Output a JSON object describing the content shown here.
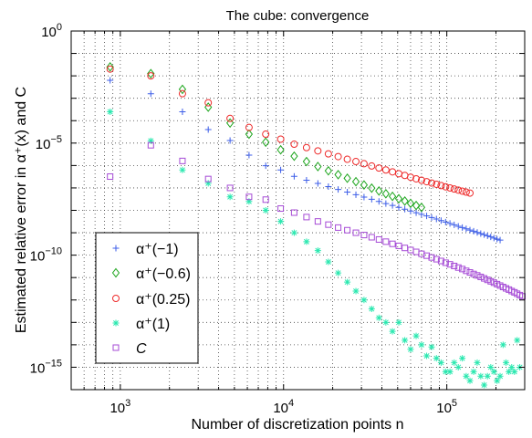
{
  "chart_data": {
    "type": "scatter",
    "title": "The cube: convergence",
    "xlabel": "Number of discretization points n",
    "ylabel": "Estimated relative error in α⁺(x) and C",
    "xscale": "log",
    "yscale": "log",
    "xlim": [
      500,
      300000
    ],
    "ylim": [
      1e-16,
      1
    ],
    "grid": true,
    "legend_position": "bottom-left",
    "x_ticks": [
      {
        "value": 1000,
        "base": "10",
        "exp": "3"
      },
      {
        "value": 10000,
        "base": "10",
        "exp": "4"
      },
      {
        "value": 100000,
        "base": "10",
        "exp": "5"
      }
    ],
    "y_ticks": [
      {
        "value": 1,
        "base": "10",
        "exp": "0"
      },
      {
        "value": 1e-05,
        "base": "10",
        "exp": "−5"
      },
      {
        "value": 1e-10,
        "base": "10",
        "exp": "−10"
      },
      {
        "value": 1e-15,
        "base": "10",
        "exp": "−15"
      }
    ],
    "series": [
      {
        "name": "α⁺(−1)",
        "marker": "plus",
        "color": "#3d5ee8",
        "points": [
          [
            866,
            0.0063
          ],
          [
            1538,
            0.00158
          ],
          [
            2402,
            0.00025
          ],
          [
            3456,
            4e-05
          ],
          [
            4702,
            1.3e-05
          ],
          [
            6144,
            2.9e-06
          ],
          [
            7774,
            9.8e-07
          ],
          [
            9600,
            6.3e-07
          ],
          [
            11616,
            3.3e-07
          ],
          [
            13824,
            2.2e-07
          ],
          [
            16224,
            1.58e-07
          ],
          [
            18816,
            1.15e-07
          ],
          [
            21600,
            8.5e-08
          ],
          [
            24576,
            6.5e-08
          ],
          [
            27744,
            5e-08
          ],
          [
            31104,
            3.9e-08
          ],
          [
            34656,
            3.1e-08
          ],
          [
            38400,
            2.5e-08
          ],
          [
            42336,
            2e-08
          ],
          [
            46464,
            1.65e-08
          ],
          [
            50784,
            1.35e-08
          ],
          [
            55296,
            1.12e-08
          ],
          [
            60000,
            9.3e-09
          ],
          [
            64896,
            7.8e-09
          ],
          [
            69984,
            6.6e-09
          ],
          [
            75264,
            5.6e-09
          ],
          [
            80736,
            4.8e-09
          ],
          [
            86400,
            4.1e-09
          ],
          [
            92256,
            3.5e-09
          ],
          [
            98304,
            3e-09
          ],
          [
            104544,
            2.6e-09
          ],
          [
            110976,
            2.25e-09
          ],
          [
            117600,
            1.95e-09
          ],
          [
            124416,
            1.7e-09
          ],
          [
            131424,
            1.5e-09
          ],
          [
            138624,
            1.32e-09
          ],
          [
            146016,
            1.17e-09
          ],
          [
            153600,
            1.03e-09
          ],
          [
            161376,
            9.2e-10
          ],
          [
            169344,
            8.2e-10
          ],
          [
            177504,
            7.3e-10
          ],
          [
            185856,
            6.5e-10
          ],
          [
            194400,
            5.8e-10
          ],
          [
            203136,
            5.2e-10
          ],
          [
            212064,
            4.7e-10
          ]
        ]
      },
      {
        "name": "α⁺(−0.6)",
        "marker": "diamond",
        "color": "#1ca51c",
        "points": [
          [
            866,
            0.025
          ],
          [
            1538,
            0.0126
          ],
          [
            2402,
            0.0025
          ],
          [
            3456,
            0.0004
          ],
          [
            4702,
            7.9e-05
          ],
          [
            6144,
            2.5e-05
          ],
          [
            7774,
            1.1e-05
          ],
          [
            9600,
            5e-06
          ],
          [
            11616,
            2.6e-06
          ],
          [
            13824,
            1.5e-06
          ],
          [
            16224,
            9e-07
          ],
          [
            18816,
            5.8e-07
          ],
          [
            21600,
            3.9e-07
          ],
          [
            24576,
            2.7e-07
          ],
          [
            27744,
            1.9e-07
          ],
          [
            31104,
            1.35e-07
          ],
          [
            34656,
            9.8e-08
          ],
          [
            38400,
            7.3e-08
          ],
          [
            42336,
            5.5e-08
          ],
          [
            46464,
            4.2e-08
          ],
          [
            50784,
            3.3e-08
          ],
          [
            55296,
            2.6e-08
          ],
          [
            60000,
            2.05e-08
          ],
          [
            64896,
            1.65e-08
          ],
          [
            69984,
            1.35e-08
          ]
        ]
      },
      {
        "name": "α⁺(0.25)",
        "marker": "circle",
        "color": "#ee2a2a",
        "points": [
          [
            866,
            0.02
          ],
          [
            1538,
            0.01
          ],
          [
            2402,
            0.0016
          ],
          [
            3456,
            0.00063
          ],
          [
            4702,
            0.000126
          ],
          [
            6144,
            5e-05
          ],
          [
            7774,
            2.5e-05
          ],
          [
            9600,
            1.5e-05
          ],
          [
            11616,
            8.9e-06
          ],
          [
            13824,
            6.3e-06
          ],
          [
            16224,
            4.5e-06
          ],
          [
            18816,
            3.3e-06
          ],
          [
            21600,
            2.5e-06
          ],
          [
            24576,
            1.9e-06
          ],
          [
            27744,
            1.5e-06
          ],
          [
            31104,
            1.2e-06
          ],
          [
            34656,
            9.5e-07
          ],
          [
            38400,
            7.7e-07
          ],
          [
            42336,
            6.3e-07
          ],
          [
            46464,
            5.2e-07
          ],
          [
            50784,
            4.3e-07
          ],
          [
            55296,
            3.6e-07
          ],
          [
            60000,
            3e-07
          ],
          [
            64896,
            2.55e-07
          ],
          [
            69984,
            2.2e-07
          ],
          [
            75264,
            1.9e-07
          ],
          [
            80736,
            1.65e-07
          ],
          [
            86400,
            1.45e-07
          ],
          [
            92256,
            1.27e-07
          ],
          [
            98304,
            1.12e-07
          ],
          [
            104544,
            1e-07
          ],
          [
            110976,
            8.9e-08
          ],
          [
            117600,
            8e-08
          ],
          [
            124416,
            7.2e-08
          ],
          [
            131424,
            6.5e-08
          ],
          [
            138624,
            5.9e-08
          ]
        ]
      },
      {
        "name": "α⁺(1)",
        "marker": "star",
        "color": "#2be8b0",
        "points": [
          [
            866,
            0.00025
          ],
          [
            1538,
            1.26e-05
          ],
          [
            2402,
            6.3e-07
          ],
          [
            3456,
            1.6e-07
          ],
          [
            4702,
            4e-08
          ],
          [
            6144,
            2.5e-08
          ],
          [
            7774,
            1e-08
          ],
          [
            9600,
            3.2e-09
          ],
          [
            11616,
            1e-09
          ],
          [
            13824,
            4e-10
          ],
          [
            16224,
            1.6e-10
          ],
          [
            18816,
            5e-11
          ],
          [
            21600,
            1.6e-11
          ],
          [
            24576,
            6.3e-12
          ],
          [
            27744,
            2.5e-12
          ],
          [
            31104,
            1e-12
          ],
          [
            34656,
            4e-13
          ],
          [
            38400,
            1.6e-13
          ],
          [
            42336,
            1e-13
          ],
          [
            46464,
            4e-14
          ],
          [
            50784,
            1e-13
          ],
          [
            55296,
            1.6e-14
          ],
          [
            60000,
            6.3e-15
          ],
          [
            64896,
            2.5e-14
          ],
          [
            69984,
            1e-14
          ],
          [
            75264,
            3.2e-15
          ],
          [
            80736,
            8e-15
          ],
          [
            86400,
            2.5e-15
          ],
          [
            92256,
            1.6e-15
          ],
          [
            98304,
            6.3e-16
          ],
          [
            104544,
            6.3e-16
          ],
          [
            110976,
            1.6e-15
          ],
          [
            117600,
            1e-15
          ],
          [
            124416,
            2.5e-15
          ],
          [
            131424,
            4e-16
          ],
          [
            138624,
            2.5e-16
          ],
          [
            146016,
            6.3e-16
          ],
          [
            153600,
            1.6e-15
          ],
          [
            161376,
            4e-16
          ],
          [
            169344,
            1.6e-16
          ],
          [
            177504,
            4e-16
          ],
          [
            185856,
            1e-15
          ],
          [
            194400,
            6.3e-16
          ],
          [
            203136,
            2.5e-16
          ],
          [
            212064,
            4e-16
          ],
          [
            221184,
            1e-14
          ],
          [
            230496,
            1.6e-15
          ],
          [
            240000,
            6.3e-16
          ],
          [
            249696,
            1e-15
          ],
          [
            259584,
            6.3e-16
          ],
          [
            269664,
            1.6e-14
          ],
          [
            279936,
            1e-15
          ]
        ]
      },
      {
        "name": "C",
        "marker": "square",
        "color": "#a64bd6",
        "points": [
          [
            866,
            3.2e-07
          ],
          [
            1538,
            8e-06
          ],
          [
            2402,
            1.6e-06
          ],
          [
            3456,
            2.5e-07
          ],
          [
            4702,
            1e-07
          ],
          [
            6144,
            4e-08
          ],
          [
            7774,
            3e-08
          ],
          [
            9600,
            1.2e-08
          ],
          [
            11616,
            7.9e-09
          ],
          [
            13824,
            5e-09
          ],
          [
            16224,
            3.2e-09
          ],
          [
            18816,
            2.3e-09
          ],
          [
            21600,
            1.7e-09
          ],
          [
            24576,
            1.3e-09
          ],
          [
            27744,
            1e-09
          ],
          [
            31104,
            7.9e-10
          ],
          [
            34656,
            6.3e-10
          ],
          [
            38400,
            5e-10
          ],
          [
            42336,
            4e-10
          ],
          [
            46464,
            3.2e-10
          ],
          [
            50784,
            2.6e-10
          ],
          [
            55296,
            2.1e-10
          ],
          [
            60000,
            1.7e-10
          ],
          [
            64896,
            1.4e-10
          ],
          [
            69984,
            1.15e-10
          ],
          [
            75264,
            9.5e-11
          ],
          [
            80736,
            7.9e-11
          ],
          [
            86400,
            6.6e-11
          ],
          [
            92256,
            5.5e-11
          ],
          [
            98304,
            4.6e-11
          ],
          [
            104544,
            3.9e-11
          ],
          [
            110976,
            3.3e-11
          ],
          [
            117600,
            2.8e-11
          ],
          [
            124416,
            2.4e-11
          ],
          [
            131424,
            2e-11
          ],
          [
            138624,
            1.7e-11
          ],
          [
            146016,
            1.45e-11
          ],
          [
            153600,
            1.25e-11
          ],
          [
            161376,
            1.07e-11
          ],
          [
            169344,
            9.2e-12
          ],
          [
            177504,
            7.9e-12
          ],
          [
            185856,
            6.8e-12
          ],
          [
            194400,
            5.9e-12
          ],
          [
            203136,
            5.1e-12
          ],
          [
            212064,
            4.4e-12
          ],
          [
            221184,
            3.8e-12
          ],
          [
            230496,
            3.3e-12
          ],
          [
            240000,
            2.9e-12
          ],
          [
            249696,
            2.5e-12
          ],
          [
            259584,
            2.2e-12
          ],
          [
            269664,
            1.9e-12
          ],
          [
            279936,
            1.65e-12
          ],
          [
            290496,
            1.45e-12
          ]
        ]
      }
    ]
  }
}
